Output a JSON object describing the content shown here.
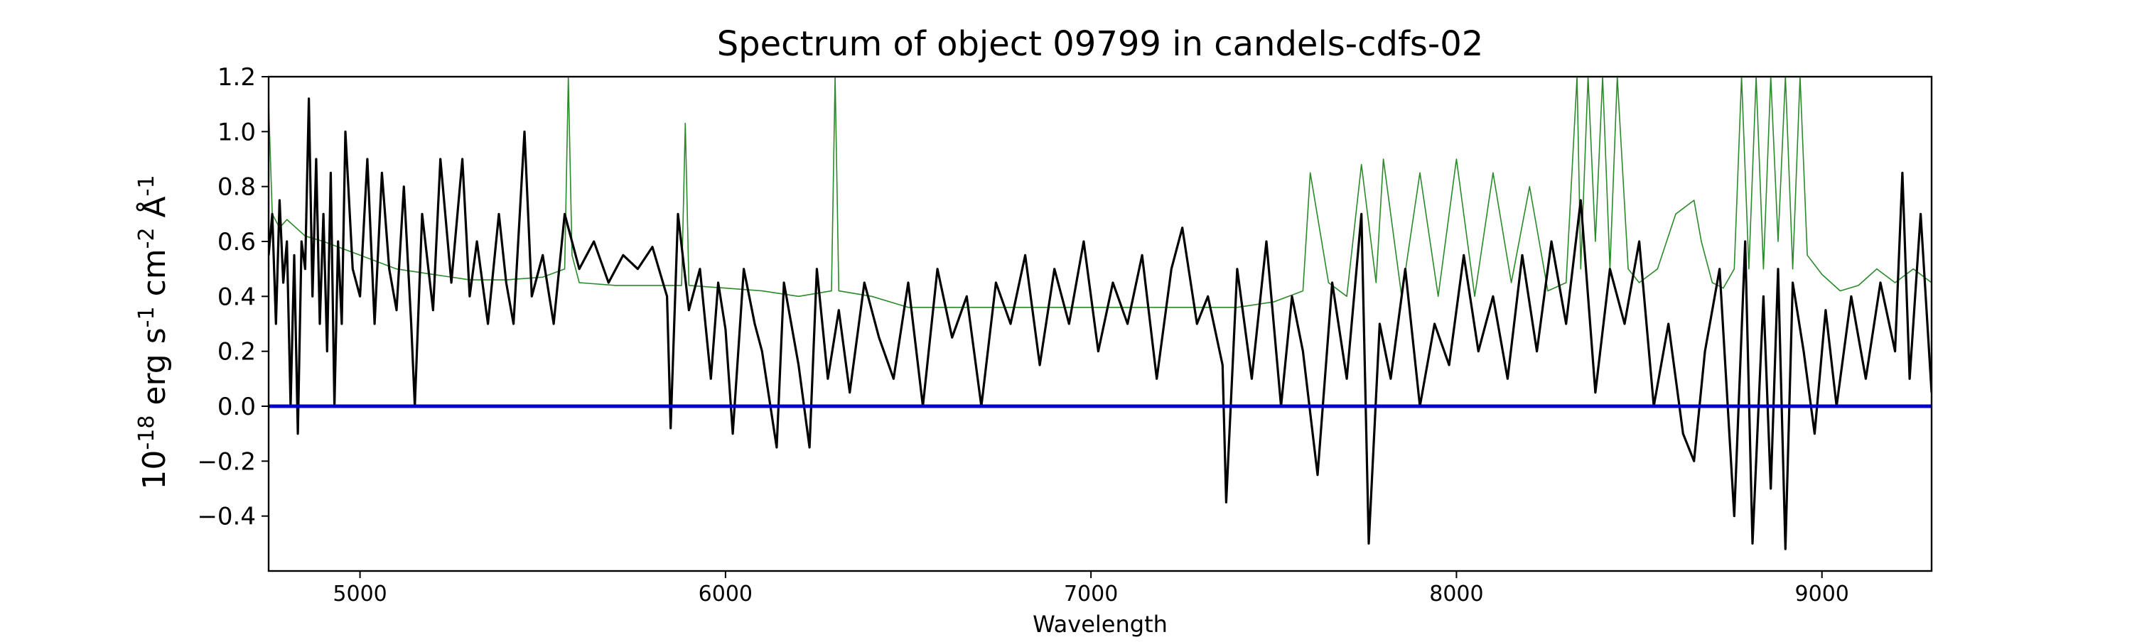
{
  "chart_data": {
    "type": "line",
    "title": "Spectrum of object 09799 in candels-cdfs-02",
    "xlabel": "Wavelength",
    "ylabel": "10^{-18} erg s^{-1} cm^{-2} Å^{-1}",
    "xlim": [
      4750,
      9300
    ],
    "ylim": [
      -0.6,
      1.2
    ],
    "xticks": [
      5000,
      6000,
      7000,
      8000,
      9000
    ],
    "yticks": [
      -0.4,
      -0.2,
      0.0,
      0.2,
      0.4,
      0.6,
      0.8,
      1.0,
      1.2
    ],
    "xtick_labels": [
      "5000",
      "6000",
      "7000",
      "8000",
      "9000"
    ],
    "ytick_labels": [
      "−0.4",
      "−0.2",
      "0.0",
      "0.2",
      "0.4",
      "0.6",
      "0.8",
      "1.0",
      "1.2"
    ],
    "grid": false,
    "legend": "none",
    "series": [
      {
        "color": "#000000",
        "x": [
          4750,
          4760,
          4770,
          4780,
          4790,
          4800,
          4810,
          4820,
          4830,
          4840,
          4850,
          4860,
          4870,
          4880,
          4890,
          4900,
          4910,
          4920,
          4930,
          4940,
          4950,
          4960,
          4980,
          5000,
          5020,
          5040,
          5060,
          5080,
          5100,
          5120,
          5140,
          5150,
          5170,
          5200,
          5220,
          5250,
          5280,
          5300,
          5320,
          5350,
          5380,
          5400,
          5420,
          5450,
          5470,
          5500,
          5530,
          5560,
          5600,
          5640,
          5680,
          5720,
          5760,
          5800,
          5840,
          5850,
          5870,
          5900,
          5930,
          5960,
          5980,
          6000,
          6020,
          6050,
          6080,
          6100,
          6140,
          6160,
          6200,
          6230,
          6250,
          6280,
          6310,
          6340,
          6380,
          6420,
          6460,
          6500,
          6540,
          6580,
          6620,
          6660,
          6700,
          6740,
          6780,
          6820,
          6860,
          6900,
          6940,
          6980,
          7020,
          7060,
          7100,
          7140,
          7180,
          7220,
          7250,
          7290,
          7320,
          7360,
          7370,
          7400,
          7440,
          7480,
          7520,
          7550,
          7580,
          7620,
          7660,
          7700,
          7740,
          7760,
          7790,
          7820,
          7860,
          7900,
          7940,
          7980,
          8020,
          8060,
          8100,
          8140,
          8180,
          8220,
          8260,
          8300,
          8340,
          8380,
          8420,
          8460,
          8500,
          8540,
          8580,
          8620,
          8650,
          8680,
          8720,
          8760,
          8790,
          8810,
          8840,
          8860,
          8880,
          8900,
          8920,
          8950,
          8980,
          9010,
          9040,
          9080,
          9120,
          9160,
          9200,
          9220,
          9240,
          9270,
          9300
        ],
        "y": [
          0.55,
          0.7,
          0.3,
          0.75,
          0.45,
          0.6,
          0.0,
          0.55,
          -0.1,
          0.6,
          0.5,
          1.12,
          0.4,
          0.9,
          0.3,
          0.7,
          0.2,
          0.85,
          0.0,
          0.6,
          0.3,
          1.0,
          0.5,
          0.4,
          0.9,
          0.3,
          0.85,
          0.5,
          0.35,
          0.8,
          0.3,
          0.0,
          0.7,
          0.35,
          0.9,
          0.45,
          0.9,
          0.4,
          0.6,
          0.3,
          0.7,
          0.45,
          0.3,
          1.0,
          0.4,
          0.55,
          0.3,
          0.7,
          0.5,
          0.6,
          0.45,
          0.55,
          0.5,
          0.58,
          0.4,
          -0.08,
          0.7,
          0.35,
          0.5,
          0.1,
          0.45,
          0.28,
          -0.1,
          0.5,
          0.3,
          0.2,
          -0.15,
          0.45,
          0.15,
          -0.15,
          0.5,
          0.1,
          0.35,
          0.05,
          0.45,
          0.25,
          0.1,
          0.45,
          0.0,
          0.5,
          0.25,
          0.4,
          0.0,
          0.45,
          0.3,
          0.55,
          0.15,
          0.5,
          0.3,
          0.6,
          0.2,
          0.45,
          0.3,
          0.55,
          0.1,
          0.5,
          0.65,
          0.3,
          0.4,
          0.15,
          -0.35,
          0.5,
          0.1,
          0.6,
          0.0,
          0.4,
          0.2,
          -0.25,
          0.45,
          0.1,
          0.7,
          -0.5,
          0.3,
          0.1,
          0.5,
          0.0,
          0.3,
          0.15,
          0.55,
          0.2,
          0.4,
          0.1,
          0.55,
          0.2,
          0.6,
          0.3,
          0.75,
          0.05,
          0.5,
          0.3,
          0.6,
          0.0,
          0.3,
          -0.1,
          -0.2,
          0.2,
          0.5,
          -0.4,
          0.6,
          -0.5,
          0.4,
          -0.3,
          0.5,
          -0.52,
          0.45,
          0.2,
          -0.1,
          0.35,
          0.0,
          0.4,
          0.1,
          0.45,
          0.2,
          0.85,
          0.1,
          0.7,
          0.05
        ]
      },
      {
        "color": "#2a8a2a",
        "x": [
          4750,
          4760,
          4780,
          4800,
          4850,
          4900,
          5000,
          5100,
          5200,
          5300,
          5400,
          5500,
          5560,
          5570,
          5580,
          5600,
          5700,
          5800,
          5880,
          5890,
          5900,
          6000,
          6100,
          6200,
          6290,
          6300,
          6310,
          6400,
          6500,
          6600,
          6700,
          6800,
          6900,
          7000,
          7100,
          7200,
          7300,
          7400,
          7500,
          7580,
          7600,
          7650,
          7700,
          7740,
          7780,
          7800,
          7850,
          7900,
          7950,
          8000,
          8050,
          8100,
          8150,
          8200,
          8250,
          8300,
          8330,
          8340,
          8360,
          8380,
          8400,
          8420,
          8440,
          8470,
          8500,
          8550,
          8600,
          8650,
          8670,
          8700,
          8730,
          8760,
          8780,
          8800,
          8820,
          8840,
          8860,
          8880,
          8900,
          8920,
          8940,
          8960,
          9000,
          9050,
          9100,
          9150,
          9200,
          9250,
          9300
        ],
        "y": [
          1.1,
          0.7,
          0.65,
          0.68,
          0.62,
          0.6,
          0.55,
          0.5,
          0.48,
          0.46,
          0.46,
          0.47,
          0.5,
          1.2,
          0.55,
          0.45,
          0.44,
          0.44,
          0.44,
          1.03,
          0.44,
          0.43,
          0.42,
          0.4,
          0.42,
          1.2,
          0.42,
          0.4,
          0.36,
          0.36,
          0.36,
          0.36,
          0.36,
          0.36,
          0.36,
          0.36,
          0.36,
          0.36,
          0.38,
          0.42,
          0.85,
          0.45,
          0.4,
          0.88,
          0.45,
          0.9,
          0.4,
          0.85,
          0.4,
          0.9,
          0.4,
          0.85,
          0.45,
          0.8,
          0.42,
          0.45,
          1.2,
          0.5,
          1.2,
          0.6,
          1.2,
          0.5,
          1.2,
          0.5,
          0.45,
          0.5,
          0.7,
          0.75,
          0.6,
          0.45,
          0.43,
          0.5,
          1.2,
          0.5,
          1.2,
          0.5,
          1.2,
          0.6,
          1.2,
          0.5,
          1.2,
          0.55,
          0.48,
          0.42,
          0.44,
          0.5,
          0.45,
          0.5,
          0.45
        ]
      }
    ],
    "reference_line": {
      "y": 0.0,
      "color": "#0000cc"
    }
  }
}
